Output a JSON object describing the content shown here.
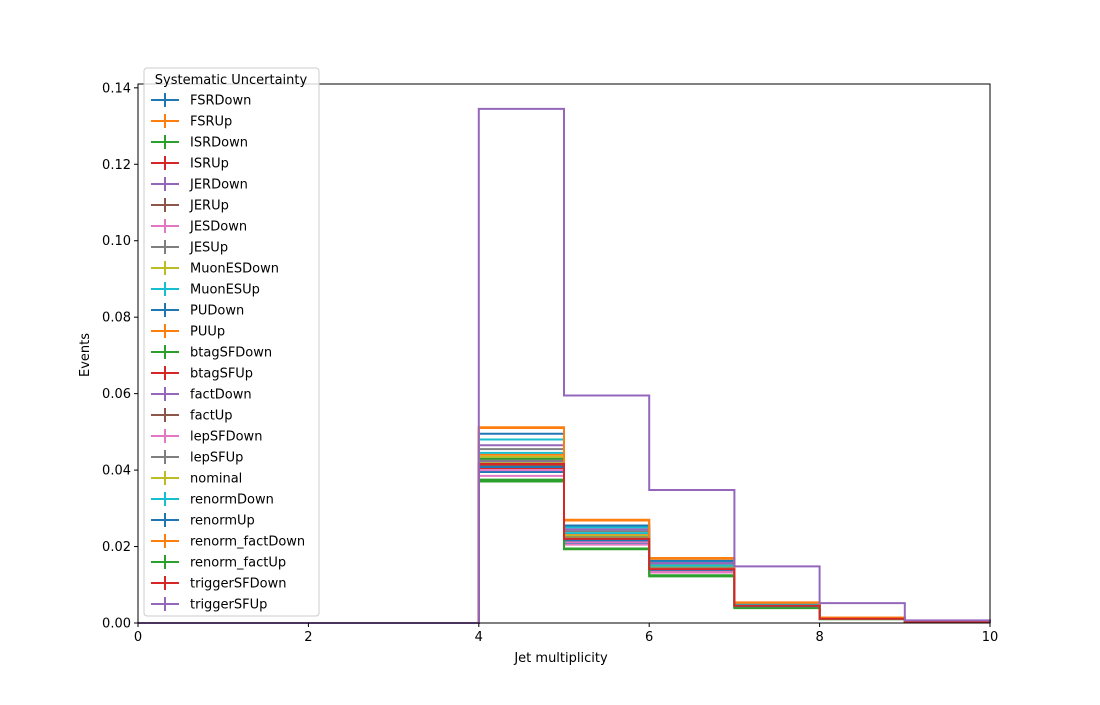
{
  "chart_data": {
    "type": "line",
    "style": "step-histogram",
    "title": "",
    "xlabel": "Jet multiplicity",
    "ylabel": "Events",
    "xlim": [
      0,
      10
    ],
    "ylim": [
      0,
      0.141
    ],
    "x_ticks": [
      "0",
      "2",
      "4",
      "6",
      "8",
      "10"
    ],
    "y_ticks": [
      "0.00",
      "0.02",
      "0.04",
      "0.06",
      "0.08",
      "0.10",
      "0.12",
      "0.14"
    ],
    "x_tick_values": [
      0,
      2,
      4,
      6,
      8,
      10
    ],
    "y_tick_values": [
      0,
      0.02,
      0.04,
      0.06,
      0.08,
      0.1,
      0.12,
      0.14
    ],
    "bin_edges": [
      0,
      1,
      2,
      3,
      4,
      5,
      6,
      7,
      8,
      9,
      10
    ],
    "grid": false,
    "legend_title": "Systematic Uncertainty",
    "legend_placement": "upper-left",
    "series": [
      {
        "name": "FSRDown",
        "color": "#1f77b4",
        "values": [
          0,
          0,
          0,
          0,
          0.0395,
          0.021,
          0.0135,
          0.0042,
          0.0011,
          0.0002
        ]
      },
      {
        "name": "FSRUp",
        "color": "#ff7f0e",
        "values": [
          0,
          0,
          0,
          0,
          0.044,
          0.023,
          0.0148,
          0.0047,
          0.0012,
          0.0003
        ]
      },
      {
        "name": "ISRDown",
        "color": "#2ca02c",
        "values": [
          0,
          0,
          0,
          0,
          0.043,
          0.0225,
          0.0145,
          0.0046,
          0.0012,
          0.0002
        ]
      },
      {
        "name": "ISRUp",
        "color": "#d62728",
        "values": [
          0,
          0,
          0,
          0,
          0.041,
          0.0218,
          0.014,
          0.0045,
          0.0011,
          0.0002
        ]
      },
      {
        "name": "JERDown",
        "color": "#9467bd",
        "values": [
          0,
          0,
          0,
          0,
          0.042,
          0.0222,
          0.0142,
          0.0045,
          0.0011,
          0.0002
        ]
      },
      {
        "name": "JERUp",
        "color": "#8c564b",
        "values": [
          0,
          0,
          0,
          0,
          0.0415,
          0.022,
          0.0141,
          0.0045,
          0.0011,
          0.0002
        ]
      },
      {
        "name": "JESDown",
        "color": "#e377c2",
        "values": [
          0,
          0,
          0,
          0,
          0.0385,
          0.0205,
          0.0132,
          0.0041,
          0.001,
          0.0002
        ]
      },
      {
        "name": "JESUp",
        "color": "#7f7f7f",
        "values": [
          0,
          0,
          0,
          0,
          0.0455,
          0.024,
          0.0155,
          0.0049,
          0.0013,
          0.0003
        ]
      },
      {
        "name": "MuonESDown",
        "color": "#bcbd22",
        "values": [
          0,
          0,
          0,
          0,
          0.0435,
          0.0228,
          0.0146,
          0.0046,
          0.0012,
          0.0002
        ]
      },
      {
        "name": "MuonESUp",
        "color": "#17becf",
        "values": [
          0,
          0,
          0,
          0,
          0.048,
          0.025,
          0.016,
          0.0051,
          0.0013,
          0.0003
        ]
      },
      {
        "name": "PUDown",
        "color": "#1f77b4",
        "values": [
          0,
          0,
          0,
          0,
          0.0495,
          0.0255,
          0.0163,
          0.0052,
          0.0013,
          0.0003
        ]
      },
      {
        "name": "PUUp",
        "color": "#ff7f0e",
        "values": [
          0,
          0,
          0,
          0,
          0.051,
          0.027,
          0.017,
          0.0054,
          0.0014,
          0.0003
        ]
      },
      {
        "name": "btagSFDown",
        "color": "#2ca02c",
        "values": [
          0,
          0,
          0,
          0,
          0.0375,
          0.0195,
          0.0125,
          0.004,
          0.001,
          0.0002
        ]
      },
      {
        "name": "btagSFUp",
        "color": "#d62728",
        "values": [
          0,
          0,
          0,
          0,
          0.0405,
          0.0215,
          0.0138,
          0.0044,
          0.0011,
          0.0002
        ]
      },
      {
        "name": "factDown",
        "color": "#9467bd",
        "values": [
          0,
          0,
          0,
          0,
          0.0465,
          0.0245,
          0.0157,
          0.005,
          0.0013,
          0.0003
        ]
      },
      {
        "name": "factUp",
        "color": "#8c564b",
        "values": [
          0,
          0,
          0,
          0,
          0.0412,
          0.0219,
          0.014,
          0.0045,
          0.0011,
          0.0002
        ]
      },
      {
        "name": "lepSFDown",
        "color": "#e377c2",
        "values": [
          0,
          0,
          0,
          0,
          0.04,
          0.0212,
          0.0136,
          0.0043,
          0.0011,
          0.0002
        ]
      },
      {
        "name": "lepSFUp",
        "color": "#7f7f7f",
        "values": [
          0,
          0,
          0,
          0,
          0.0425,
          0.0224,
          0.0144,
          0.0046,
          0.0012,
          0.0002
        ]
      },
      {
        "name": "nominal",
        "color": "#bcbd22",
        "values": [
          0,
          0,
          0,
          0,
          0.0418,
          0.0221,
          0.0142,
          0.0045,
          0.0011,
          0.0002
        ]
      },
      {
        "name": "renormDown",
        "color": "#17becf",
        "values": [
          0,
          0,
          0,
          0,
          0.0445,
          0.0235,
          0.015,
          0.0048,
          0.0012,
          0.0003
        ]
      },
      {
        "name": "renormUp",
        "color": "#1f77b4",
        "values": [
          0,
          0,
          0,
          0,
          0.0408,
          0.0216,
          0.0139,
          0.0044,
          0.0011,
          0.0002
        ]
      },
      {
        "name": "renorm_factDown",
        "color": "#ff7f0e",
        "values": [
          0,
          0,
          0,
          0,
          0.0512,
          0.0268,
          0.0168,
          0.0053,
          0.0014,
          0.0003
        ]
      },
      {
        "name": "renorm_factUp",
        "color": "#2ca02c",
        "values": [
          0,
          0,
          0,
          0,
          0.037,
          0.0193,
          0.0122,
          0.0039,
          0.001,
          0.0002
        ]
      },
      {
        "name": "triggerSFDown",
        "color": "#d62728",
        "values": [
          0,
          0,
          0,
          0,
          0.0416,
          0.022,
          0.0141,
          0.0045,
          0.0011,
          0.0002
        ]
      },
      {
        "name": "triggerSFUp",
        "color": "#9467bd",
        "values": [
          0,
          0,
          0,
          0,
          0.1345,
          0.0595,
          0.0348,
          0.0148,
          0.0052,
          0.0007
        ]
      }
    ]
  }
}
